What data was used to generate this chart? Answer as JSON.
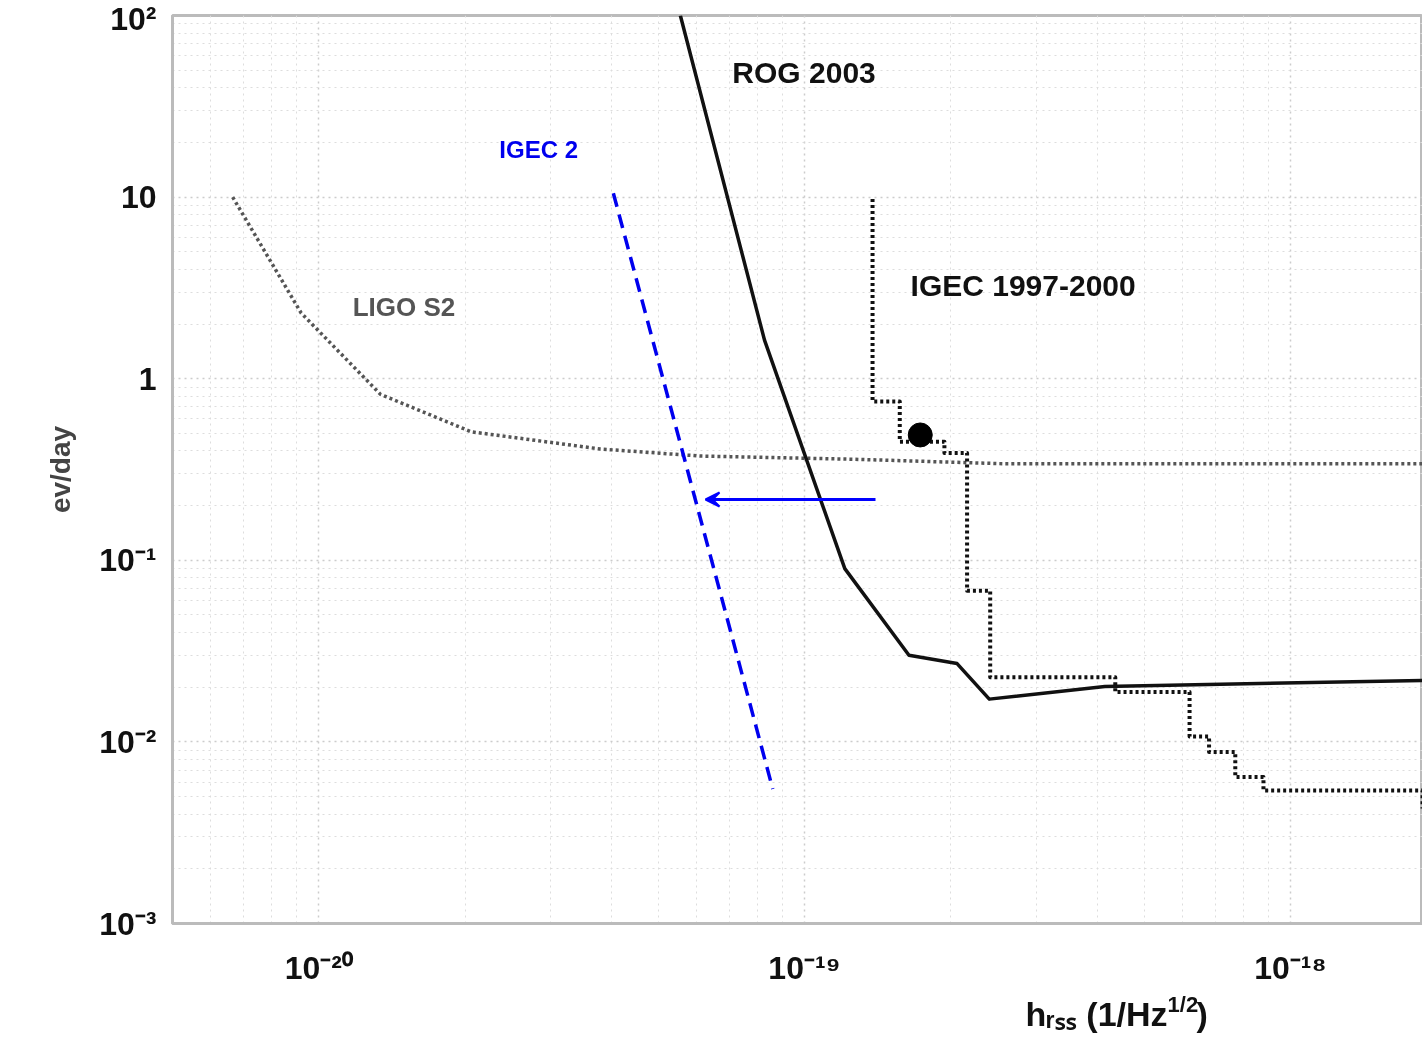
{
  "chart_data": {
    "type": "line",
    "xlabel": "hᵣₛₛ (1/Hz$^{1/2}$)",
    "ylabel": "ev/day",
    "log": "xy",
    "grid": true,
    "legend": false,
    "xlim": [
      5e-21,
      1.87e-18
    ],
    "ylim": [
      0.001,
      100
    ],
    "xticks": [
      {
        "value": 1e-20,
        "label": "10⁻²⁰"
      },
      {
        "value": 1e-19,
        "label": "10⁻¹⁹"
      },
      {
        "value": 1e-18,
        "label": "10⁻¹⁸"
      }
    ],
    "yticks": [
      {
        "value": 0.001,
        "label": "10⁻³"
      },
      {
        "value": 0.01,
        "label": "10⁻²"
      },
      {
        "value": 0.1,
        "label": "10⁻¹"
      },
      1,
      10,
      {
        "value": 100,
        "label": "10²"
      }
    ],
    "series": [
      {
        "name": "LIGO S2",
        "line_style": "dotted",
        "marker": "none",
        "color": "#555555",
        "x": [
          6.65e-21,
          9.2e-21,
          1.34e-20,
          2.06e-20,
          3.8e-20,
          6.1e-20,
          1.27e-19,
          2.58e-19,
          1.87e-18
        ],
        "values": [
          10,
          2.3,
          0.82,
          0.51,
          0.41,
          0.375,
          0.36,
          0.34,
          0.34
        ]
      },
      {
        "name": "ROG 2003",
        "line_style": "solid",
        "marker": "none",
        "color": "#111111",
        "x": [
          5.55e-20,
          8.27e-20,
          1.21e-19,
          1.64e-19,
          2.06e-19,
          2.4e-19,
          4.15e-19,
          1.87e-18
        ],
        "values": [
          100,
          1.63,
          0.09,
          0.03,
          0.027,
          0.0172,
          0.0202,
          0.0218
        ]
      },
      {
        "name": "IGEC 2",
        "line_style": "dashed",
        "marker": "none",
        "color": "#0000ee",
        "x": [
          4.04e-20,
          8.6e-20
        ],
        "values": [
          10.5,
          0.0055
        ]
      },
      {
        "name": "IGEC 1997-2000",
        "type": "step",
        "line_style": "dotted",
        "marker": "none",
        "color": "#111111",
        "x": [
          1.38e-19,
          1.38e-19,
          1.57e-19,
          1.94e-19,
          2.16e-19,
          2.41e-19,
          4.36e-19,
          6.2e-19,
          6.8e-19,
          7.7e-19,
          8.8e-19,
          1.87e-18
        ],
        "values": [
          9.75,
          0.75,
          0.45,
          0.39,
          0.068,
          0.0227,
          0.0188,
          0.0107,
          0.0088,
          0.0064,
          0.0054,
          0.0043
        ]
      },
      {
        "type": "scatter",
        "marker": "circle",
        "color": "#000000",
        "x": [
          1.73e-19
        ],
        "values": [
          0.49
        ]
      }
    ]
  }
}
